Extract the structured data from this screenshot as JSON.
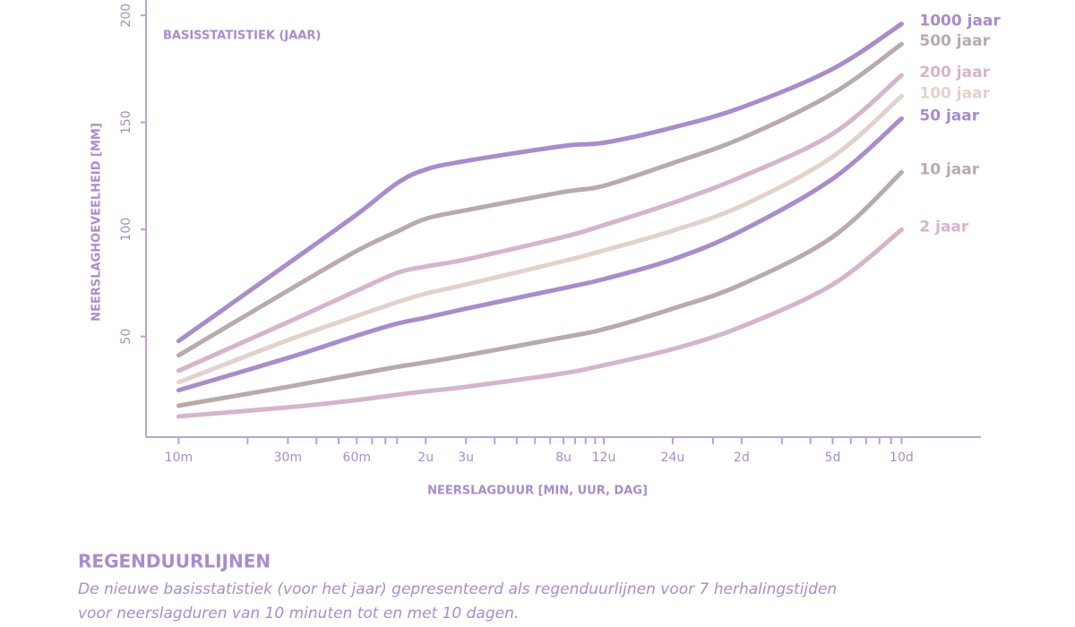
{
  "chart_data": {
    "type": "line",
    "annotation": "BASISSTATISTIEK (JAAR)",
    "xlabel": "NEERSLAGDUUR [MIN, UUR, DAG]",
    "ylabel": "NEERSLAGHOEVEELHEID [MM]",
    "xscale": "log",
    "xlim": [
      7.2,
      32000
    ],
    "ylim": [
      3,
      203
    ],
    "xticks": [
      {
        "value": 10,
        "label": "10m"
      },
      {
        "value": 30,
        "label": "30m"
      },
      {
        "value": 60,
        "label": "60m"
      },
      {
        "value": 120,
        "label": "2u"
      },
      {
        "value": 180,
        "label": "3u"
      },
      {
        "value": 480,
        "label": "8u"
      },
      {
        "value": 720,
        "label": "12u"
      },
      {
        "value": 1440,
        "label": "24u"
      },
      {
        "value": 2880,
        "label": "2d"
      },
      {
        "value": 7200,
        "label": "5d"
      },
      {
        "value": 14400,
        "label": "10d"
      }
    ],
    "xminorticks": [
      20,
      40,
      50,
      70,
      80,
      90,
      240,
      300,
      360,
      420,
      540,
      600,
      660,
      2160,
      4320,
      5760,
      8640,
      10080,
      11520,
      12960
    ],
    "yticks": [
      50,
      100,
      150,
      200
    ],
    "x": [
      10,
      30,
      60,
      90,
      120,
      180,
      480,
      720,
      1440,
      2880,
      7200,
      14400
    ],
    "series": [
      {
        "name": "1000 jaar",
        "color": "#a98ccb",
        "values": [
          47.9,
          84,
          107,
          121.6,
          128,
          132,
          139,
          140.5,
          147.6,
          157,
          175,
          196
        ]
      },
      {
        "name": "500 jaar",
        "color": "#b8aaad",
        "values": [
          41.2,
          71.4,
          90,
          99,
          105,
          109,
          117.5,
          120.4,
          131,
          142.6,
          163.5,
          186.6
        ]
      },
      {
        "name": "200 jaar",
        "color": "#d4b5cc",
        "values": [
          34,
          56.7,
          71.4,
          79.7,
          82.7,
          86,
          96.5,
          102,
          112.4,
          124.6,
          144.7,
          172
        ]
      },
      {
        "name": "100 jaar",
        "color": "#e3d2cc",
        "values": [
          28.6,
          48.3,
          59.6,
          66,
          70,
          74.3,
          85.2,
          90.2,
          99.4,
          111,
          134,
          162.3
        ]
      },
      {
        "name": "50 jaar",
        "color": "#a98ccb",
        "values": [
          24.9,
          40,
          50.4,
          56,
          58.8,
          63,
          72.6,
          76.8,
          86,
          99.4,
          123.7,
          151.8
        ]
      },
      {
        "name": "10 jaar",
        "color": "#b8aaad",
        "values": [
          17.7,
          26.5,
          32.4,
          35.8,
          37.9,
          41.2,
          49.6,
          53.4,
          63,
          74.3,
          96.5,
          126.7
        ]
      },
      {
        "name": "2 jaar",
        "color": "#d4b5cc",
        "values": [
          12.7,
          16.9,
          20.3,
          22.8,
          24.4,
          26.5,
          32.8,
          36.6,
          44.1,
          54.6,
          74.3,
          99.9
        ]
      }
    ]
  },
  "caption": {
    "heading": "REGENDUURLIJNEN",
    "lines": [
      "De nieuwe basisstatistiek (voor het jaar) gepresenteerd als regenduurlijnen voor 7 herhalingstijden",
      "voor neerslagduren van 10 minuten tot en met 10 dagen."
    ]
  }
}
